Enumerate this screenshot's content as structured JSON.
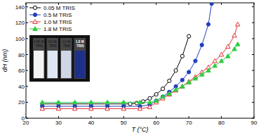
{
  "chart_data": {
    "type": "line",
    "x_label": "T (°C)",
    "y_label": "dH (nm)",
    "xlim": [
      20,
      90
    ],
    "xticks": [
      20,
      30,
      40,
      50,
      60,
      70,
      80,
      90
    ],
    "ylim": [
      0,
      145
    ],
    "yticks": [
      0,
      20,
      40,
      60,
      80,
      100,
      120,
      140
    ],
    "legend": "upper left",
    "grid": false,
    "annotations": [
      "0.05 M TRIS",
      "0.5 M TRIS",
      "1.0 M TRIS",
      "1.8 M TRIS"
    ],
    "series": [
      {
        "name": "0.05 M TRIS",
        "color": "#000000",
        "marker": "circle-open",
        "line_style": "solid",
        "x": [
          25,
          30,
          35,
          40,
          45,
          50,
          52,
          54,
          56,
          58,
          60,
          62,
          64,
          66,
          68,
          70
        ],
        "values": [
          18,
          18,
          18,
          18,
          18,
          18,
          18,
          19,
          21,
          25,
          30,
          37,
          47,
          60,
          78,
          103
        ]
      },
      {
        "name": "0.5 M TRIS",
        "color": "#1f3fbf",
        "marker": "circle",
        "line_style": "solid",
        "x": [
          25,
          30,
          35,
          40,
          45,
          50,
          55,
          58,
          60,
          62,
          64,
          66,
          68,
          70,
          72,
          74,
          76,
          77
        ],
        "values": [
          15,
          15,
          15,
          15,
          15,
          15,
          15,
          17,
          22,
          27,
          33,
          40,
          48,
          58,
          72,
          92,
          118,
          144
        ]
      },
      {
        "name": "1.0 M TRIS",
        "color": "#e0303a",
        "marker": "triangle-open",
        "line_style": "solid",
        "x": [
          25,
          30,
          35,
          40,
          45,
          50,
          55,
          58,
          60,
          62,
          64,
          66,
          68,
          70,
          72,
          74,
          76,
          78,
          80,
          82,
          84,
          85
        ],
        "values": [
          12,
          12,
          12,
          12,
          12,
          12,
          12,
          14,
          20,
          25,
          30,
          35,
          40,
          46,
          52,
          58,
          64,
          72,
          80,
          90,
          104,
          118
        ]
      },
      {
        "name": "1.8 M TRIS",
        "color": "#2ecc40",
        "marker": "triangle",
        "line_style": "solid",
        "x": [
          25,
          30,
          35,
          40,
          45,
          50,
          55,
          58,
          60,
          62,
          64,
          66,
          68,
          70,
          72,
          74,
          76,
          78,
          80,
          82,
          84,
          85
        ],
        "values": [
          20,
          20,
          20,
          20,
          20,
          20,
          20,
          20,
          22,
          27,
          31,
          36,
          40,
          45,
          50,
          55,
          60,
          66,
          72,
          78,
          87,
          93
        ]
      }
    ]
  }
}
